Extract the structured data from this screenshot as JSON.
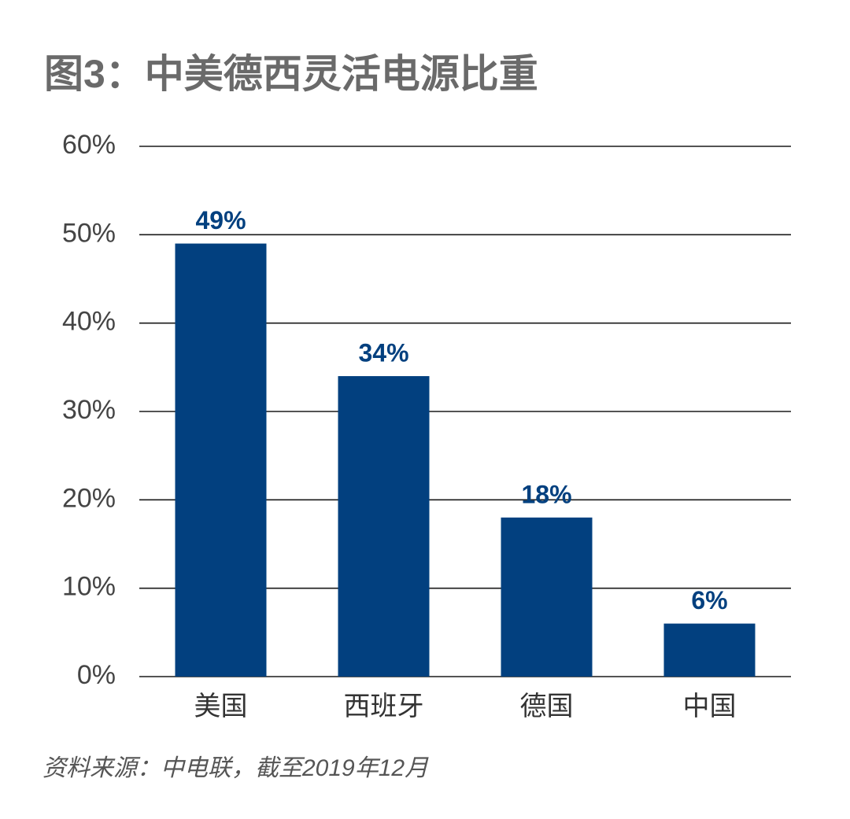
{
  "chart_data": {
    "type": "bar",
    "title": "图3：中美德西灵活电源比重",
    "source": "资料来源：中电联，截至2019年12月",
    "categories": [
      "美国",
      "西班牙",
      "德国",
      "中国"
    ],
    "values": [
      49,
      34,
      18,
      6
    ],
    "value_labels": [
      "49%",
      "34%",
      "18%",
      "6%"
    ],
    "color": "#02407f",
    "ylim": [
      0,
      60
    ],
    "yticks": [
      {
        "value": 0,
        "label": "0%"
      },
      {
        "value": 10,
        "label": "10%"
      },
      {
        "value": 20,
        "label": "20%"
      },
      {
        "value": 30,
        "label": "30%"
      },
      {
        "value": 40,
        "label": "40%"
      },
      {
        "value": 50,
        "label": "50%"
      },
      {
        "value": 60,
        "label": "60%"
      }
    ],
    "grid": true
  }
}
